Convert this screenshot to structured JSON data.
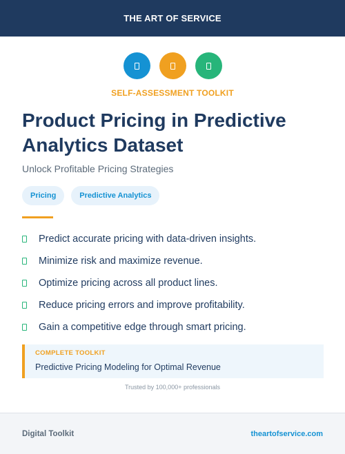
{
  "header": {
    "brand": "THE ART OF SERVICE"
  },
  "icons": [
    {
      "name": "square-glyph-icon",
      "color": "#1592d3"
    },
    {
      "name": "square-glyph-icon",
      "color": "#f0a020"
    },
    {
      "name": "square-glyph-icon",
      "color": "#27b57a"
    }
  ],
  "eyebrow": "SELF-ASSESSMENT TOOLKIT",
  "title": "Product Pricing in Predictive Analytics Dataset",
  "subtitle": "Unlock Profitable Pricing Strategies",
  "tags": [
    "Pricing",
    "Predictive Analytics"
  ],
  "benefits": [
    "Predict accurate pricing with data-driven insights.",
    "Minimize risk and maximize revenue.",
    "Optimize pricing across all product lines.",
    "Reduce pricing errors and improve profitability.",
    "Gain a competitive edge through smart pricing."
  ],
  "callout": {
    "label": "COMPLETE TOOLKIT",
    "text": "Predictive Pricing Modeling for Optimal Revenue"
  },
  "trusted": "Trusted by 100,000+ professionals",
  "footer": {
    "left": "Digital Toolkit",
    "right": "theartofservice.com"
  },
  "colors": {
    "navy": "#1f3a5f",
    "accent_orange": "#f0a020",
    "accent_blue": "#1592d3",
    "accent_green": "#27b57a"
  }
}
